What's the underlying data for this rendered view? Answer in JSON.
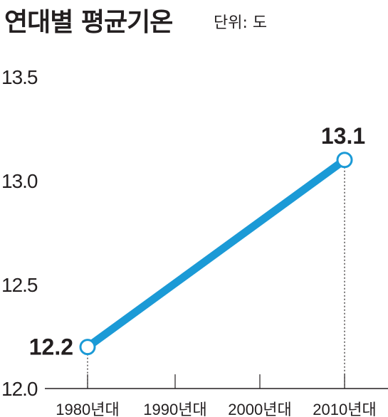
{
  "chart_data": {
    "type": "line",
    "title": "연대별 평균기온",
    "unit_label": "단위: 도",
    "categories": [
      "1980년대",
      "1990년대",
      "2000년대",
      "2010년대"
    ],
    "series": [
      {
        "values": [
          12.2,
          null,
          null,
          13.1
        ]
      }
    ],
    "data_labels": [
      "12.2",
      "13.1"
    ],
    "y_ticks": [
      "13.5",
      "13.0",
      "12.5",
      "12.0"
    ],
    "ylim": [
      12.0,
      13.5
    ],
    "grid": false,
    "line_color": "#1b9ad6",
    "marker_fill": "#ffffff"
  }
}
